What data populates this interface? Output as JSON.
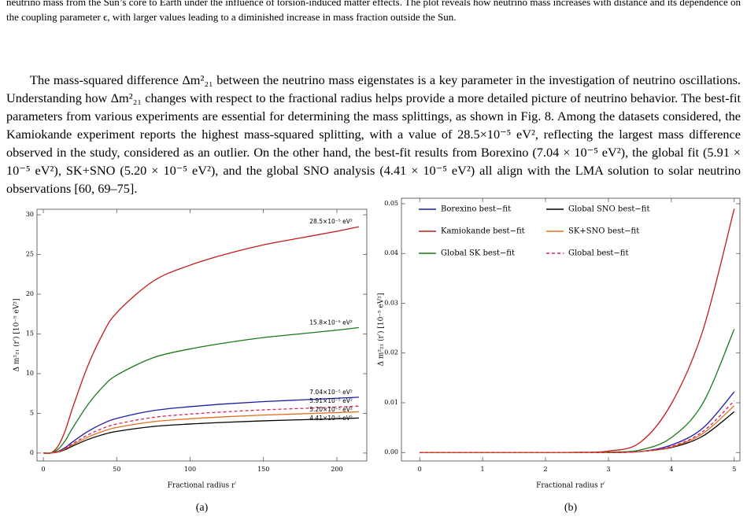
{
  "text_above": "neutrino mass from the Sun’s core to Earth under the influence of torsion-induced matter effects. The plot reveals how neutrino mass increases with distance and its dependence on the coupling parameter ϵ, with larger values leading to a diminished increase in mass fraction outside the Sun.",
  "paragraph": "The mass-squared difference Δm²₂₁ between the neutrino mass eigenstates is a key parameter in the investigation of neutrino oscillations. Understanding how Δm²₂₁ changes with respect to the fractional radius helps provide a more detailed picture of neutrino behavior. The best-fit parameters from various experiments are essential for determining the mass splittings, as shown in Fig. 8. Among the datasets considered, the Kamiokande experiment reports the highest mass-squared splitting, with a value of 28.5×10⁻⁵ eV², reflecting the largest mass difference observed in the study, considered as an outlier. On the other hand, the best-fit results from Borexino (7.04 × 10⁻⁵ eV²), the global fit (5.91 × 10⁻⁵ eV²), SK+SNO (5.20 × 10⁻⁵ eV²), and the global SNO analysis (4.41 × 10⁻⁵ eV²) all align with the LMA solution to solar neutrino observations [60, 69–75].",
  "chart_data": [
    {
      "type": "line",
      "caption": "(a)",
      "x_label": "Fractional radius r′",
      "y_label": "Δ m²₂₁ (r′) [10⁻⁵ eV²]",
      "x": [
        0,
        5,
        10,
        15,
        20,
        30,
        40,
        50,
        75,
        100,
        125,
        150,
        175,
        200,
        215
      ],
      "series": [
        {
          "color": "#1c1ca8",
          "label": "7.04×10⁻⁵ eV²",
          "values": [
            0,
            0,
            0.21,
            0.7,
            1.41,
            2.68,
            3.66,
            4.36,
            5.35,
            5.84,
            6.2,
            6.48,
            6.69,
            6.9,
            7.04
          ]
        },
        {
          "color": "#c41a1a",
          "label": "28.5×10⁻⁵ eV²",
          "values": [
            0,
            0,
            0.86,
            2.85,
            5.7,
            10.83,
            14.82,
            17.67,
            21.66,
            23.66,
            25.08,
            26.22,
            27.08,
            27.93,
            28.5
          ]
        },
        {
          "color": "#1a7a1a",
          "label": "15.8×10⁻⁵ eV²",
          "values": [
            0,
            0,
            0.47,
            1.58,
            3.16,
            6.0,
            8.22,
            9.8,
            12.01,
            13.11,
            13.9,
            14.54,
            15.01,
            15.48,
            15.8
          ]
        },
        {
          "color": "#000000",
          "label": "4.41×10⁻⁵ eV²",
          "values": [
            0,
            0,
            0.13,
            0.44,
            0.88,
            1.68,
            2.29,
            2.73,
            3.35,
            3.66,
            3.88,
            4.06,
            4.19,
            4.32,
            4.41
          ]
        },
        {
          "color": "#e07020",
          "label": "5.20×10⁻⁵ eV²",
          "values": [
            0,
            0,
            0.16,
            0.52,
            1.04,
            1.98,
            2.7,
            3.22,
            3.95,
            4.32,
            4.58,
            4.78,
            4.94,
            5.1,
            5.2
          ]
        },
        {
          "color": "#dc1f55",
          "dash": true,
          "label": "5.91×10⁻⁵ eV²",
          "values": [
            0,
            0,
            0.18,
            0.59,
            1.18,
            2.25,
            3.07,
            3.66,
            4.49,
            4.91,
            5.2,
            5.44,
            5.61,
            5.79,
            5.91
          ]
        }
      ],
      "xlim": [
        -4.3,
        220.4
      ],
      "ylim": [
        -1,
        30.7
      ],
      "xticks": [
        0,
        50,
        100,
        150,
        200
      ],
      "yticks": [
        0,
        5,
        10,
        15,
        20,
        25,
        30
      ]
    },
    {
      "type": "line",
      "caption": "(b)",
      "x_label": "Fractional radius r′",
      "y_label": "Δ m²₂₁ (r′) [10⁻⁵ eV²]",
      "x": [
        0,
        0.5,
        1,
        1.5,
        2,
        2.5,
        3,
        3.5,
        4,
        4.5,
        5
      ],
      "series": [
        {
          "name": "Borexino best−fit",
          "color": "#1c1ca8",
          "values": [
            0,
            0,
            0,
            0,
            0,
            0,
            0,
            0.0002,
            0.0015,
            0.0049,
            0.0122
          ]
        },
        {
          "name": "Kamiokande best−fit",
          "color": "#c41a1a",
          "values": [
            0,
            0,
            0,
            0,
            0,
            5e-05,
            0.0003,
            0.002,
            0.0098,
            0.0245,
            0.049
          ]
        },
        {
          "name": "Global SK best−fit",
          "color": "#1a7a1a",
          "values": [
            0,
            0,
            0,
            0,
            0,
            0,
            0.0001,
            0.0005,
            0.003,
            0.0099,
            0.0248
          ]
        },
        {
          "name": "Global SNO best−fit",
          "color": "#000000",
          "values": [
            0,
            0,
            0,
            0,
            0,
            0,
            0,
            0.0002,
            0.001,
            0.0033,
            0.0082
          ]
        },
        {
          "name": "SK+SNO best−fit",
          "color": "#e07020",
          "values": [
            0,
            0,
            0,
            0,
            0,
            0,
            0,
            0.0002,
            0.0011,
            0.0038,
            0.0094
          ]
        },
        {
          "name": "Global best−fit",
          "color": "#dc1f55",
          "dash": true,
          "values": [
            0,
            0,
            0,
            0,
            0,
            0,
            0,
            0.0002,
            0.0012,
            0.0042,
            0.0104
          ]
        }
      ],
      "legend": "upper left",
      "xlim": [
        -0.29,
        5.09
      ],
      "ylim": [
        -0.0017,
        0.0511
      ],
      "xticks": [
        0,
        1,
        2,
        3,
        4,
        5
      ],
      "yticks": [
        {
          "value": 0,
          "label": "0.00"
        },
        0.01,
        0.02,
        0.03,
        0.04,
        0.05
      ]
    }
  ]
}
